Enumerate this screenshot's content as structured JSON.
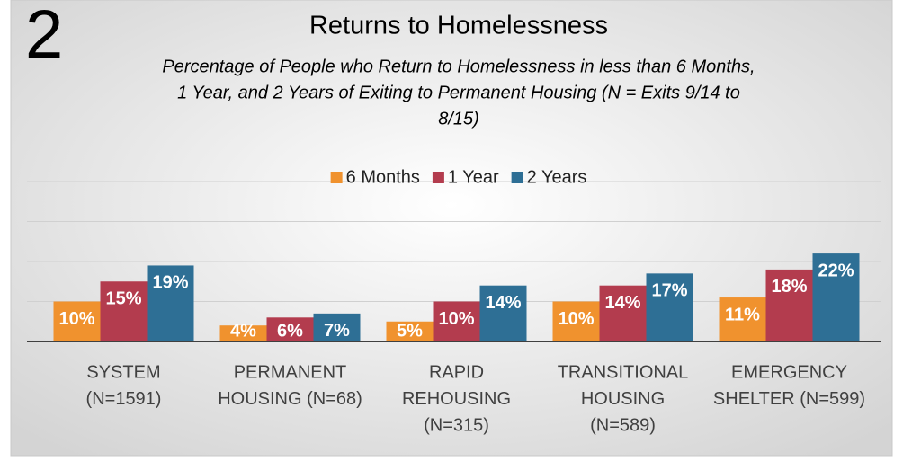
{
  "chart_data": {
    "type": "bar",
    "badge": "2",
    "title": "Returns to Homelessness",
    "subtitle": [
      "Percentage of People who Return to Homelessness in less than 6 Months,",
      "1 Year, and 2 Years of Exiting to Permanent Housing (N = Exits 9/14 to",
      "8/15)"
    ],
    "categories": [
      [
        "SYSTEM",
        "(N=1591)"
      ],
      [
        "PERMANENT",
        "HOUSING (N=68)"
      ],
      [
        "RAPID",
        "REHOUSING",
        "(N=315)"
      ],
      [
        "TRANSITIONAL",
        "HOUSING",
        "(N=589)"
      ],
      [
        "EMERGENCY",
        "SHELTER (N=599)"
      ]
    ],
    "series": [
      {
        "name": "6 Months",
        "color": "#f0922e",
        "values": [
          10,
          4,
          5,
          10,
          11
        ],
        "value_labels": [
          "10%",
          "4%",
          "5%",
          "10%",
          "11%"
        ]
      },
      {
        "name": "1 Year",
        "color": "#b33c4e",
        "values": [
          15,
          6,
          10,
          14,
          18
        ],
        "value_labels": [
          "15%",
          "6%",
          "10%",
          "14%",
          "18%"
        ]
      },
      {
        "name": "2 Years",
        "color": "#2e6f95",
        "values": [
          19,
          7,
          14,
          17,
          22
        ],
        "value_labels": [
          "19%",
          "7%",
          "14%",
          "17%",
          "22%"
        ]
      }
    ],
    "ylim": [
      0,
      40
    ],
    "yticks": [
      0,
      10,
      20,
      30,
      40
    ],
    "grid": true,
    "legend": "top"
  }
}
